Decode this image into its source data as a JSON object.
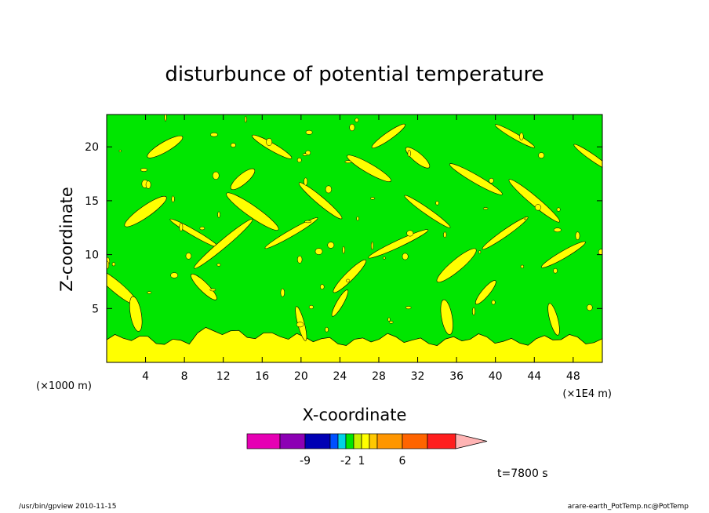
{
  "chart_data": {
    "type": "heatmap",
    "title": "disturbunce of potential temperature",
    "xlabel": "X-coordinate",
    "ylabel": "Z-coordinate",
    "x_unit_left": "(×1000 m)",
    "x_unit_right": "(×1E4 m)",
    "x_ticks": [
      4,
      8,
      12,
      16,
      20,
      24,
      28,
      32,
      36,
      40,
      44,
      48
    ],
    "y_ticks": [
      5,
      10,
      15,
      20
    ],
    "xlim": [
      0,
      51
    ],
    "ylim": [
      0,
      23
    ],
    "grid": false,
    "time_label": "t=7800 s",
    "colorbar": {
      "colors": [
        "#e600b4",
        "#8c00b4",
        "#0000b4",
        "#0050ff",
        "#00d2e6",
        "#00e600",
        "#c8f000",
        "#ffff00",
        "#ffc800",
        "#ff9600",
        "#ff6400",
        "#ff1e1e",
        "#ff8080",
        "#ffb4b4"
      ],
      "tick_labels": [
        {
          "text": "-9",
          "index": 2
        },
        {
          "text": "-2",
          "index": 5
        },
        {
          "text": "1",
          "index": 7
        },
        {
          "text": "6",
          "index": 10
        }
      ]
    },
    "field_colors": {
      "background": "#00e600",
      "anomaly": "#ffff00"
    }
  },
  "footer": {
    "left": "/usr/bin/gpview   2010-11-15",
    "right": "arare-earth_PotTemp.nc@PotTemp"
  }
}
